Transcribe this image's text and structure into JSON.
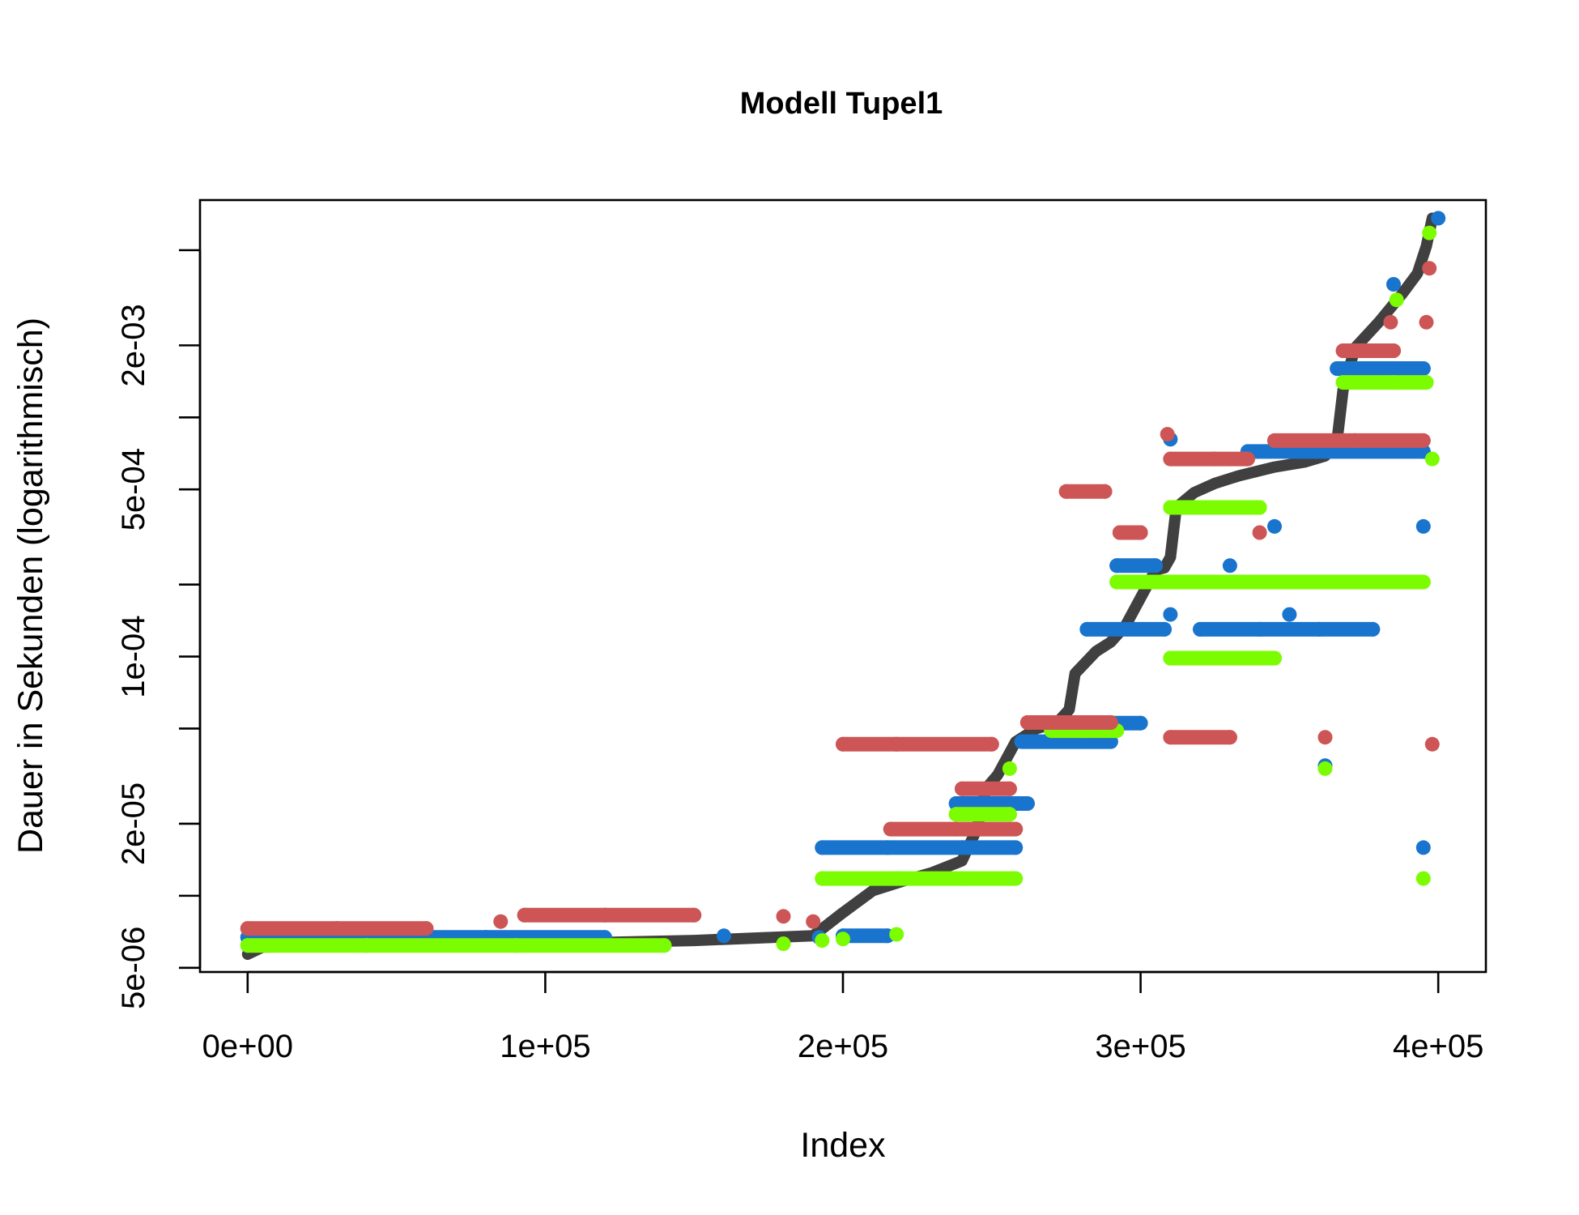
{
  "chart_data": {
    "type": "scatter",
    "title": "Modell Tupel1",
    "xlabel": "Index",
    "ylabel": "Dauer in Sekunden (logarithmisch)",
    "y_scale": "log",
    "xlim": [
      -16000,
      416000
    ],
    "ylim": [
      4.8e-06,
      0.0081
    ],
    "x_ticks": [
      0,
      100000,
      200000,
      300000,
      400000
    ],
    "x_tick_labels": [
      "0e+00",
      "1e+05",
      "2e+05",
      "3e+05",
      "4e+05"
    ],
    "y_ticks": [
      5e-06,
      1e-05,
      2e-05,
      5e-05,
      0.0001,
      0.0002,
      0.0005,
      0.001,
      0.002,
      0.005
    ],
    "y_tick_labels": [
      "5e-06",
      "",
      "2e-05",
      "",
      "1e-04",
      "",
      "5e-04",
      "",
      "2e-03",
      ""
    ],
    "grid": false,
    "legend": "none",
    "colors": {
      "sorted": "#404040",
      "series_blue": "#1874CD",
      "series_red": "#CD5555",
      "series_green": "#7CFC00"
    },
    "sorted_line": {
      "x": [
        0,
        5000,
        40000,
        100000,
        150000,
        190000,
        200000,
        210000,
        220000,
        230000,
        240000,
        245000,
        248000,
        252000,
        258000,
        265000,
        272000,
        276000,
        278000,
        285000,
        290000,
        295000,
        305000,
        308000,
        310000,
        312000,
        318000,
        325000,
        333000,
        345000,
        355000,
        362000,
        366000,
        368000,
        372000,
        380000,
        388000,
        393000,
        396000,
        398000
      ],
      "y": [
        5.7e-06,
        6.1e-06,
        6.2e-06,
        6.3e-06,
        6.5e-06,
        6.8e-06,
        8.5e-06,
        1.05e-05,
        1.15e-05,
        1.25e-05,
        1.4e-05,
        1.9e-05,
        2.8e-05,
        3.2e-05,
        4.4e-05,
        5e-05,
        5.3e-05,
        6e-05,
        8.5e-05,
        0.000105,
        0.000115,
        0.000135,
        0.00023,
        0.000235,
        0.00026,
        0.00042,
        0.000485,
        0.00053,
        0.00057,
        0.00062,
        0.00065,
        0.00069,
        0.0008,
        0.0013,
        0.00195,
        0.0025,
        0.0033,
        0.004,
        0.0052,
        0.0068
      ]
    },
    "series": [
      {
        "color": "series_blue",
        "x": [
          0,
          40000,
          80000,
          120000,
          160000,
          192000,
          200000,
          215000,
          193000,
          215000,
          240000,
          258000,
          238000,
          262000,
          260000,
          290000,
          272000,
          300000,
          282000,
          308000,
          292000,
          305000,
          320000,
          340000,
          360000,
          378000,
          395000,
          366000,
          380000,
          395000,
          336000,
          355000,
          395000,
          385000,
          400000,
          310000,
          345000,
          395000,
          310000,
          330000,
          350000,
          362000
        ],
        "y": [
          6.7e-06,
          6.7e-06,
          6.7e-06,
          6.7e-06,
          6.8e-06,
          6.7e-06,
          6.8e-06,
          6.8e-06,
          1.59e-05,
          1.59e-05,
          1.59e-05,
          1.59e-05,
          2.43e-05,
          2.43e-05,
          4.41e-05,
          4.41e-05,
          5.27e-05,
          5.27e-05,
          0.00013,
          0.00013,
          0.00024,
          0.00024,
          0.00013,
          0.00013,
          0.00013,
          0.00013,
          0.00035,
          0.0016,
          0.0016,
          0.0016,
          0.00072,
          0.00072,
          0.00072,
          0.0036,
          0.0068,
          0.00081,
          0.00035,
          1.59e-05,
          0.00015,
          0.00024,
          0.00015,
          3.5e-05
        ]
      },
      {
        "color": "series_red",
        "x": [
          0,
          30000,
          60000,
          85000,
          93000,
          120000,
          150000,
          180000,
          190000,
          200000,
          218000,
          250000,
          216000,
          238000,
          258000,
          240000,
          256000,
          262000,
          290000,
          275000,
          288000,
          293000,
          300000,
          310000,
          325000,
          336000,
          345000,
          372000,
          395000,
          368000,
          385000,
          396000,
          384000,
          397000,
          309000,
          340000,
          362000,
          398000,
          310000,
          330000
        ],
        "y": [
          7.3e-06,
          7.3e-06,
          7.3e-06,
          7.8e-06,
          8.3e-06,
          8.3e-06,
          8.3e-06,
          8.2e-06,
          7.8e-06,
          4.3e-05,
          4.3e-05,
          4.3e-05,
          1.9e-05,
          1.9e-05,
          1.9e-05,
          2.8e-05,
          2.8e-05,
          5.3e-05,
          5.3e-05,
          0.00049,
          0.00049,
          0.00033,
          0.00033,
          0.00067,
          0.00067,
          0.00067,
          0.0008,
          0.0008,
          0.0008,
          0.0019,
          0.0019,
          0.0025,
          0.0025,
          0.0042,
          0.00085,
          0.00033,
          4.6e-05,
          4.3e-05,
          4.6e-05,
          4.6e-05
        ]
      },
      {
        "color": "series_green",
        "x": [
          0,
          40000,
          90000,
          140000,
          180000,
          193000,
          200000,
          218000,
          193000,
          218000,
          240000,
          258000,
          238000,
          256000,
          256000,
          270000,
          280000,
          292000,
          292000,
          310000,
          330000,
          355000,
          395000,
          310000,
          345000,
          368000,
          385000,
          396000,
          386000,
          397000,
          310000,
          340000,
          362000,
          395000,
          398000
        ],
        "y": [
          6.2e-06,
          6.2e-06,
          6.2e-06,
          6.2e-06,
          6.3e-06,
          6.5e-06,
          6.6e-06,
          6.9e-06,
          1.18e-05,
          1.18e-05,
          1.18e-05,
          1.18e-05,
          2.19e-05,
          2.19e-05,
          3.4e-05,
          4.9e-05,
          4.9e-05,
          4.9e-05,
          0.000205,
          0.000205,
          0.000205,
          0.000205,
          0.000205,
          9.85e-05,
          9.85e-05,
          0.0014,
          0.0014,
          0.0014,
          0.0031,
          0.0059,
          0.00042,
          0.00042,
          3.4e-05,
          1.18e-05,
          0.00067
        ]
      }
    ]
  }
}
